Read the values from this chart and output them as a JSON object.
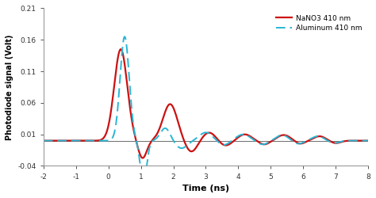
{
  "xlabel": "Time (ns)",
  "ylabel": "Photodiode signal (Volt)",
  "xlim": [
    -2,
    8
  ],
  "ylim": [
    -0.04,
    0.21
  ],
  "yticks": [
    -0.04,
    0.01,
    0.06,
    0.11,
    0.16,
    0.21
  ],
  "ytick_labels": [
    "-0.04",
    "0.01",
    "0.06",
    "0.11",
    "0.16",
    "0.21"
  ],
  "xticks": [
    -2,
    -1,
    0,
    1,
    2,
    3,
    4,
    5,
    6,
    7,
    8
  ],
  "xtick_labels": [
    "-2",
    "-1",
    "0",
    "1",
    "2",
    "3",
    "4",
    "5",
    "6",
    "7",
    "8"
  ],
  "legend": [
    "NaNO3 410 nm",
    "Aluminum 410 nm"
  ],
  "red_color": "#cc1111",
  "blue_color": "#29b6d4",
  "bg_color": "#ffffff",
  "left_margin_color": "#e8e8e0",
  "figsize": [
    4.74,
    2.5
  ],
  "dpi": 100
}
